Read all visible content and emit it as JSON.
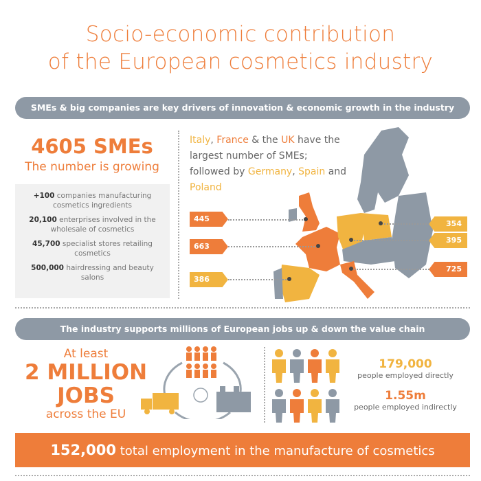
{
  "title": {
    "line1": "Socio-economic contribution",
    "line2": "of the European cosmetics industry"
  },
  "colors": {
    "orange": "#ee7d3a",
    "yellow": "#f1b440",
    "gray": "#8e99a5"
  },
  "section1": {
    "banner": "SMEs & big companies are key drivers of innovation & economic growth in the industry",
    "sme_count": "4605 SMEs",
    "sme_sub": "The number is growing",
    "facts": [
      {
        "value": "+100",
        "text": " companies manufacturing cosmetics ingredients"
      },
      {
        "value": "20,100",
        "text": " enterprises involved in the wholesale of cosmetics"
      },
      {
        "value": "45,700",
        "text": " specialist stores retailing cosmetics"
      },
      {
        "value": "500,000",
        "text": " hairdressing and beauty salons"
      }
    ],
    "map_text": {
      "italy": "Italy",
      "c1": ", ",
      "france": "France",
      "c2": " & the ",
      "uk": "UK",
      "t1": " have the largest number of SMEs; followed by ",
      "germany": "Germany",
      "c3": ", ",
      "spain": "Spain",
      "t2": " and ",
      "poland": "Poland"
    },
    "map_labels": {
      "uk": "445",
      "france": "663",
      "spain": "386",
      "poland": "354",
      "germany": "395",
      "italy": "725"
    }
  },
  "section2": {
    "banner": "The industry supports millions of European jobs up & down the value chain",
    "jobs": {
      "l1": "At least",
      "l2": "2 MILLION",
      "l3": "JOBS",
      "l4": "across the EU"
    },
    "direct": {
      "value": "179,000",
      "label": "people employed directly"
    },
    "indirect": {
      "value": "1.55m",
      "label": "people employed indirectly"
    },
    "people_icons": [
      "yellow",
      "gray",
      "orange",
      "yellow",
      "gray",
      "orange",
      "yellow",
      "gray"
    ]
  },
  "footer": {
    "value": "152,000",
    "text": " total employment in the manufacture of cosmetics"
  }
}
